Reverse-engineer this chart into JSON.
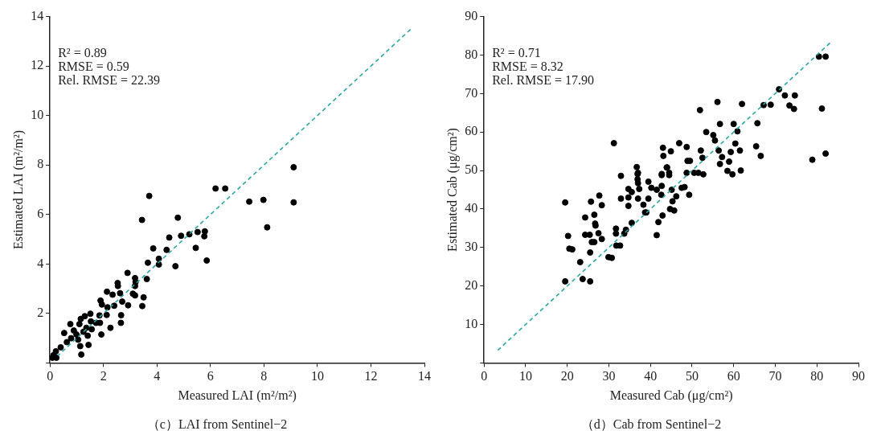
{
  "chart_data": [
    {
      "type": "scatter",
      "title": "（c）LAI from Sentinel−2",
      "xlabel": "Measured LAI (m²/m²)",
      "ylabel": "Estimated LAI (m²/m²)",
      "annotations": [
        "R² = 0.89",
        "RMSE = 0.59",
        "Rel. RMSE = 22.39"
      ],
      "xlim": [
        0,
        14
      ],
      "ylim": [
        0,
        14
      ],
      "xticks": [
        0,
        2,
        4,
        6,
        8,
        10,
        12,
        14
      ],
      "yticks": [
        {
          "value": 0,
          "label": null
        },
        2,
        4,
        6,
        8,
        10,
        12,
        14
      ],
      "grid": false,
      "legend": false,
      "marker": "circle",
      "series": [
        {
          "color": "#000000",
          "x": [
            6.19,
            6.55,
            3.71,
            3.44,
            4.78,
            4.46,
            4.9,
            5.21,
            5.52,
            5.79,
            5.77,
            5.45,
            5.86,
            3.86,
            4.36,
            3.66,
            4.07,
            4.07,
            4.69,
            3.62,
            3.18,
            3.2,
            2.9,
            3.18,
            3.1,
            3.18,
            3.5,
            3.45,
            2.92,
            2.53,
            2.54,
            2.13,
            2.34,
            2.62,
            2.7,
            2.4,
            2.66,
            2.65,
            2.26,
            1.89,
            1.94,
            2.15,
            2.12,
            1.87,
            1.85,
            1.51,
            1.72,
            1.92,
            1.53,
            1.56,
            1.36,
            1.3,
            1.15,
            1.1,
            1.25,
            1.44,
            1.17,
            1.13,
            0.99,
            0.76,
            0.89,
            0.53,
            0.63,
            0.79,
            0.4,
            0.22,
            0.13,
            0.09,
            0.24,
            1.05,
            1.41,
            9.11,
            7.45,
            7.98,
            9.11,
            8.12
          ],
          "values": [
            7.05,
            7.05,
            6.75,
            5.78,
            5.87,
            5.07,
            5.14,
            5.2,
            5.29,
            5.32,
            5.12,
            4.65,
            4.14,
            4.63,
            4.57,
            4.05,
            4.21,
            3.98,
            3.91,
            3.39,
            3.43,
            3.27,
            3.64,
            3.11,
            2.8,
            2.73,
            2.65,
            2.3,
            2.33,
            3.23,
            3.11,
            2.88,
            2.76,
            2.82,
            2.48,
            2.31,
            1.93,
            1.62,
            1.42,
            2.52,
            2.36,
            2.25,
            1.94,
            1.62,
            1.92,
            1.99,
            1.62,
            1.15,
            1.68,
            1.36,
            1.42,
            1.89,
            1.78,
            1.57,
            1.26,
            0.73,
            0.34,
            0.68,
            1.15,
            1.57,
            1.31,
            1.21,
            0.84,
            1.0,
            0.63,
            0.47,
            0.31,
            0.21,
            0.21,
            0.94,
            1.1,
            7.91,
            6.52,
            6.59,
            6.49,
            5.48
          ]
        },
        {
          "type": "line",
          "color": "#2aa5a5",
          "line_style": "dashed",
          "marker": "none",
          "x": [
            0.3,
            13.5
          ],
          "values": [
            0.3,
            13.5
          ]
        }
      ]
    },
    {
      "type": "scatter",
      "title": "（d）Cab from Sentinel−2",
      "xlabel": "Measured Cab (μg/cm²)",
      "ylabel": "Estimated Cab (μg/cm²)",
      "annotations": [
        "R² = 0.71",
        "RMSE = 8.32",
        "Rel. RMSE = 17.90"
      ],
      "xlim": [
        0,
        90
      ],
      "ylim": [
        0,
        90
      ],
      "xticks": [
        0,
        10,
        20,
        30,
        40,
        50,
        60,
        70,
        80,
        90
      ],
      "yticks": [
        {
          "value": 0,
          "label": null
        },
        10,
        20,
        30,
        40,
        50,
        60,
        70,
        80,
        90
      ],
      "grid": false,
      "legend": false,
      "marker": "circle",
      "series": [
        {
          "color": "#000000",
          "x": [
            80.5,
            82.1,
            81.2,
            82.1,
            78.9,
            70.9,
            72.3,
            74.7,
            73.4,
            74.5,
            67.2,
            68.9,
            65.7,
            65.4,
            66.5,
            62.0,
            56.1,
            51.9,
            56.7,
            60.0,
            60.9,
            53.4,
            55.1,
            55.5,
            60.4,
            56.4,
            61.5,
            59.3,
            57.2,
            56.7,
            58.9,
            58.5,
            61.7,
            59.7,
            31.2,
            46.9,
            48.7,
            52.1,
            52.5,
            43.0,
            43.1,
            44.9,
            48.9,
            49.5,
            44.0,
            36.7,
            37.0,
            42.7,
            44.5,
            48.7,
            50.5,
            51.5,
            52.7,
            32.9,
            36.9,
            36.9,
            37.0,
            37.3,
            39.5,
            40.2,
            41.5,
            34.7,
            35.5,
            34.7,
            32.9,
            37.0,
            39.5,
            34.7,
            38.3,
            38.7,
            39.0,
            35.5,
            42.7,
            42.7,
            43.9,
            44.5,
            45.1,
            46.2,
            45.3,
            44.7,
            45.7,
            42.6,
            42.9,
            41.9,
            41.5,
            47.5,
            48.2,
            49.3,
            27.7,
            25.7,
            28.3,
            19.5,
            26.5,
            24.3,
            26.7,
            26.8,
            20.2,
            24.3,
            25.4,
            27.5,
            28.3,
            25.9,
            26.5,
            20.5,
            21.2,
            25.5,
            23.1,
            29.9,
            30.7,
            31.8,
            32.7,
            31.7,
            33.7,
            34.1,
            31.7,
            19.5,
            23.7,
            25.5
          ],
          "values": [
            79.6,
            79.6,
            66.1,
            54.4,
            52.8,
            71.1,
            69.5,
            69.5,
            66.9,
            66.0,
            67.0,
            67.1,
            62.3,
            56.3,
            53.8,
            67.3,
            67.8,
            65.7,
            62.1,
            62.1,
            60.2,
            60.0,
            59.2,
            57.8,
            57.0,
            55.2,
            55.2,
            54.8,
            53.5,
            51.7,
            52.3,
            49.9,
            50.0,
            49.0,
            57.1,
            57.1,
            56.1,
            55.2,
            53.3,
            55.9,
            53.8,
            55.0,
            52.5,
            52.5,
            50.8,
            50.9,
            49.4,
            49.1,
            49.4,
            49.4,
            49.4,
            49.4,
            49.0,
            48.6,
            49.1,
            47.7,
            46.7,
            45.2,
            47.1,
            45.5,
            45.0,
            45.2,
            44.4,
            43.0,
            42.7,
            42.7,
            42.7,
            40.8,
            41.1,
            39.1,
            39.1,
            36.4,
            48.8,
            46.0,
            50.8,
            48.8,
            45.0,
            43.3,
            42.0,
            40.0,
            39.6,
            43.7,
            38.3,
            36.6,
            33.2,
            45.5,
            45.7,
            43.7,
            43.5,
            41.9,
            41.0,
            41.7,
            38.5,
            37.8,
            36.2,
            35.7,
            33.0,
            33.3,
            33.3,
            33.7,
            32.2,
            31.4,
            31.4,
            29.7,
            29.5,
            28.7,
            26.2,
            27.5,
            27.3,
            30.5,
            30.5,
            33.6,
            33.6,
            34.6,
            34.9,
            21.2,
            21.8,
            21.2
          ]
        },
        {
          "type": "line",
          "color": "#2aa5a5",
          "line_style": "dashed",
          "marker": "none",
          "x": [
            3,
            83.5
          ],
          "values": [
            3,
            83.5
          ]
        }
      ]
    }
  ]
}
